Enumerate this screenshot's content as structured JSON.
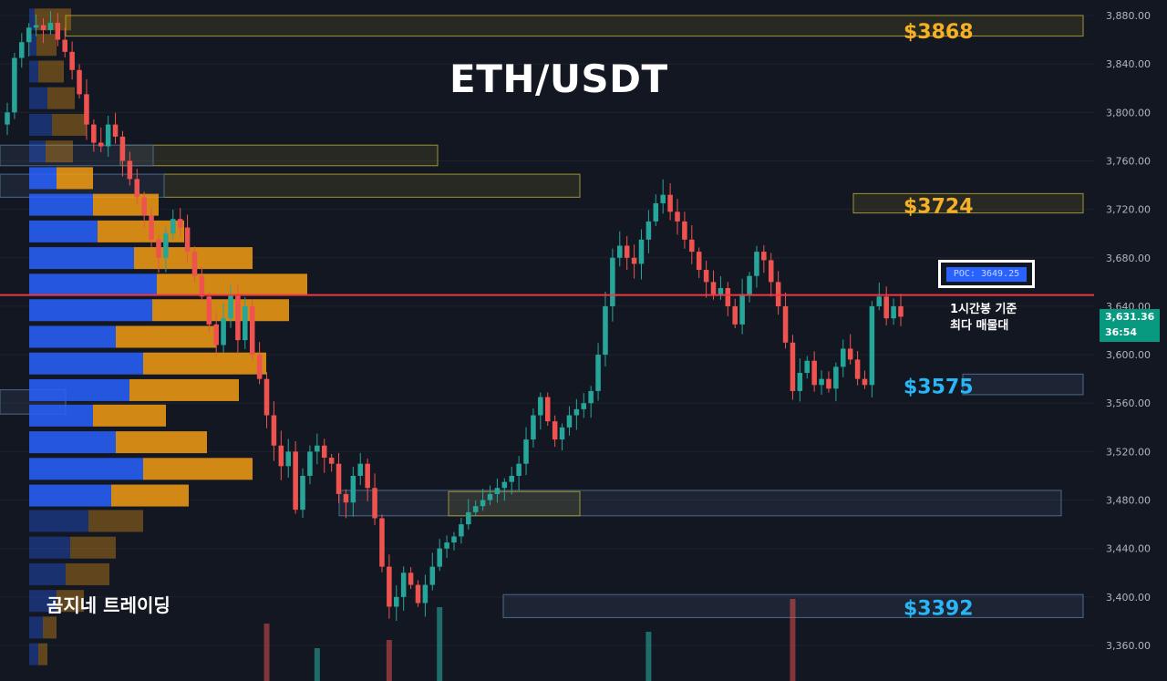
{
  "title": "ETH/USDT",
  "watermark": "곰지네 트레이딩",
  "poc": {
    "badge": "POC: 3649.25",
    "note_line1": "1시간봉 기준",
    "note_line2": "최다 매물대"
  },
  "current_price": {
    "price": "3,631.36",
    "countdown": "36:54"
  },
  "colors": {
    "background": "#131722",
    "bull": "#26a69a",
    "bear": "#ef5350",
    "poc_line": "#f23645",
    "level_orange": "#f5b025",
    "level_blue": "#29b6f6",
    "vp_up": "#2962ff",
    "vp_down": "#f39c12"
  },
  "chart_data": {
    "type": "candlestick",
    "title": "ETH/USDT",
    "y_axis": {
      "position": "right",
      "range": [
        3340,
        3890
      ],
      "ticks": [
        "3,880.00",
        "3,840.00",
        "3,800.00",
        "3,760.00",
        "3,720.00",
        "3,680.00",
        "3,640.00",
        "3,600.00",
        "3,560.00",
        "3,520.00",
        "3,480.00",
        "3,440.00",
        "3,400.00",
        "3,360.00"
      ],
      "tick_values": [
        3880,
        3840,
        3800,
        3760,
        3720,
        3680,
        3640,
        3600,
        3560,
        3520,
        3480,
        3440,
        3400,
        3360
      ]
    },
    "poc_price": 3649.25,
    "level_labels": [
      {
        "text": "$3868",
        "price": 3868,
        "color": "orange"
      },
      {
        "text": "$3724",
        "price": 3724,
        "color": "orange"
      },
      {
        "text": "$3575",
        "price": 3575,
        "color": "blue"
      },
      {
        "text": "$3392",
        "price": 3392,
        "color": "blue"
      }
    ],
    "zones": [
      {
        "top": 3880,
        "bottom": 3863,
        "kind": "orange",
        "from": 0.06,
        "to": 0.99
      },
      {
        "top": 3773,
        "bottom": 3756,
        "kind": "orange",
        "from": 0.11,
        "to": 0.4
      },
      {
        "top": 3749,
        "bottom": 3730,
        "kind": "orange",
        "from": 0.15,
        "to": 0.53
      },
      {
        "top": 3733,
        "bottom": 3717,
        "kind": "orange",
        "from": 0.78,
        "to": 0.99
      },
      {
        "top": 3584,
        "bottom": 3567,
        "kind": "blue",
        "from": 0.88,
        "to": 0.99
      },
      {
        "top": 3488,
        "bottom": 3467,
        "kind": "blue",
        "from": 0.31,
        "to": 0.97
      },
      {
        "top": 3487,
        "bottom": 3467,
        "kind": "orange",
        "from": 0.41,
        "to": 0.53
      },
      {
        "top": 3402,
        "bottom": 3383,
        "kind": "blue",
        "from": 0.46,
        "to": 0.99
      },
      {
        "top": 3773,
        "bottom": 3756,
        "kind": "blue",
        "from": 0.0,
        "to": 0.14
      },
      {
        "top": 3749,
        "bottom": 3730,
        "kind": "blue",
        "from": 0.0,
        "to": 0.15
      },
      {
        "top": 3571,
        "bottom": 3551,
        "kind": "blue",
        "from": 0.0,
        "to": 0.06
      }
    ],
    "volume_profile": [
      {
        "price": 3876,
        "up": 6,
        "down": 40
      },
      {
        "price": 3855,
        "up": 8,
        "down": 22
      },
      {
        "price": 3833,
        "up": 10,
        "down": 28
      },
      {
        "price": 3811,
        "up": 20,
        "down": 30
      },
      {
        "price": 3789,
        "up": 25,
        "down": 38
      },
      {
        "price": 3767,
        "up": 18,
        "down": 30
      },
      {
        "price": 3745,
        "up": 30,
        "down": 40
      },
      {
        "price": 3723,
        "up": 70,
        "down": 72
      },
      {
        "price": 3701,
        "up": 75,
        "down": 95
      },
      {
        "price": 3679,
        "up": 115,
        "down": 130
      },
      {
        "price": 3657,
        "up": 140,
        "down": 165
      },
      {
        "price": 3636,
        "up": 135,
        "down": 150
      },
      {
        "price": 3614,
        "up": 95,
        "down": 110
      },
      {
        "price": 3592,
        "up": 125,
        "down": 135
      },
      {
        "price": 3570,
        "up": 110,
        "down": 120
      },
      {
        "price": 3549,
        "up": 70,
        "down": 80
      },
      {
        "price": 3527,
        "up": 95,
        "down": 100
      },
      {
        "price": 3505,
        "up": 125,
        "down": 120
      },
      {
        "price": 3483,
        "up": 90,
        "down": 85
      },
      {
        "price": 3462,
        "up": 65,
        "down": 60
      },
      {
        "price": 3440,
        "up": 45,
        "down": 50
      },
      {
        "price": 3418,
        "up": 40,
        "down": 48
      },
      {
        "price": 3396,
        "up": 30,
        "down": 30
      },
      {
        "price": 3374,
        "up": 15,
        "down": 15
      },
      {
        "price": 3352,
        "up": 10,
        "down": 10
      }
    ],
    "closes": [
      3800,
      3845,
      3858,
      3870,
      3872,
      3868,
      3874,
      3860,
      3850,
      3835,
      3815,
      3790,
      3775,
      3772,
      3790,
      3780,
      3760,
      3745,
      3730,
      3715,
      3695,
      3680,
      3700,
      3712,
      3705,
      3685,
      3665,
      3648,
      3625,
      3608,
      3630,
      3650,
      3612,
      3640,
      3600,
      3580,
      3550,
      3525,
      3508,
      3520,
      3472,
      3500,
      3520,
      3525,
      3515,
      3510,
      3485,
      3478,
      3500,
      3510,
      3490,
      3465,
      3425,
      3392,
      3400,
      3420,
      3410,
      3395,
      3410,
      3425,
      3440,
      3445,
      3450,
      3460,
      3470,
      3475,
      3480,
      3485,
      3490,
      3495,
      3500,
      3510,
      3530,
      3550,
      3565,
      3545,
      3530,
      3540,
      3550,
      3555,
      3560,
      3570,
      3600,
      3640,
      3680,
      3690,
      3680,
      3675,
      3695,
      3710,
      3725,
      3732,
      3718,
      3710,
      3695,
      3685,
      3670,
      3660,
      3650,
      3655,
      3640,
      3625,
      3650,
      3665,
      3685,
      3678,
      3660,
      3640,
      3610,
      3570,
      3585,
      3595,
      3575,
      3580,
      3572,
      3590,
      3605,
      3596,
      3580,
      3575,
      3640,
      3648,
      3630,
      3640,
      3631.36
    ],
    "volume_spikes": [
      {
        "index": 36,
        "height": 0.7
      },
      {
        "index": 43,
        "height": 0.4
      },
      {
        "index": 53,
        "height": 0.5
      },
      {
        "index": 60,
        "height": 0.9
      },
      {
        "index": 89,
        "height": 0.6
      },
      {
        "index": 109,
        "height": 1.0
      }
    ]
  }
}
